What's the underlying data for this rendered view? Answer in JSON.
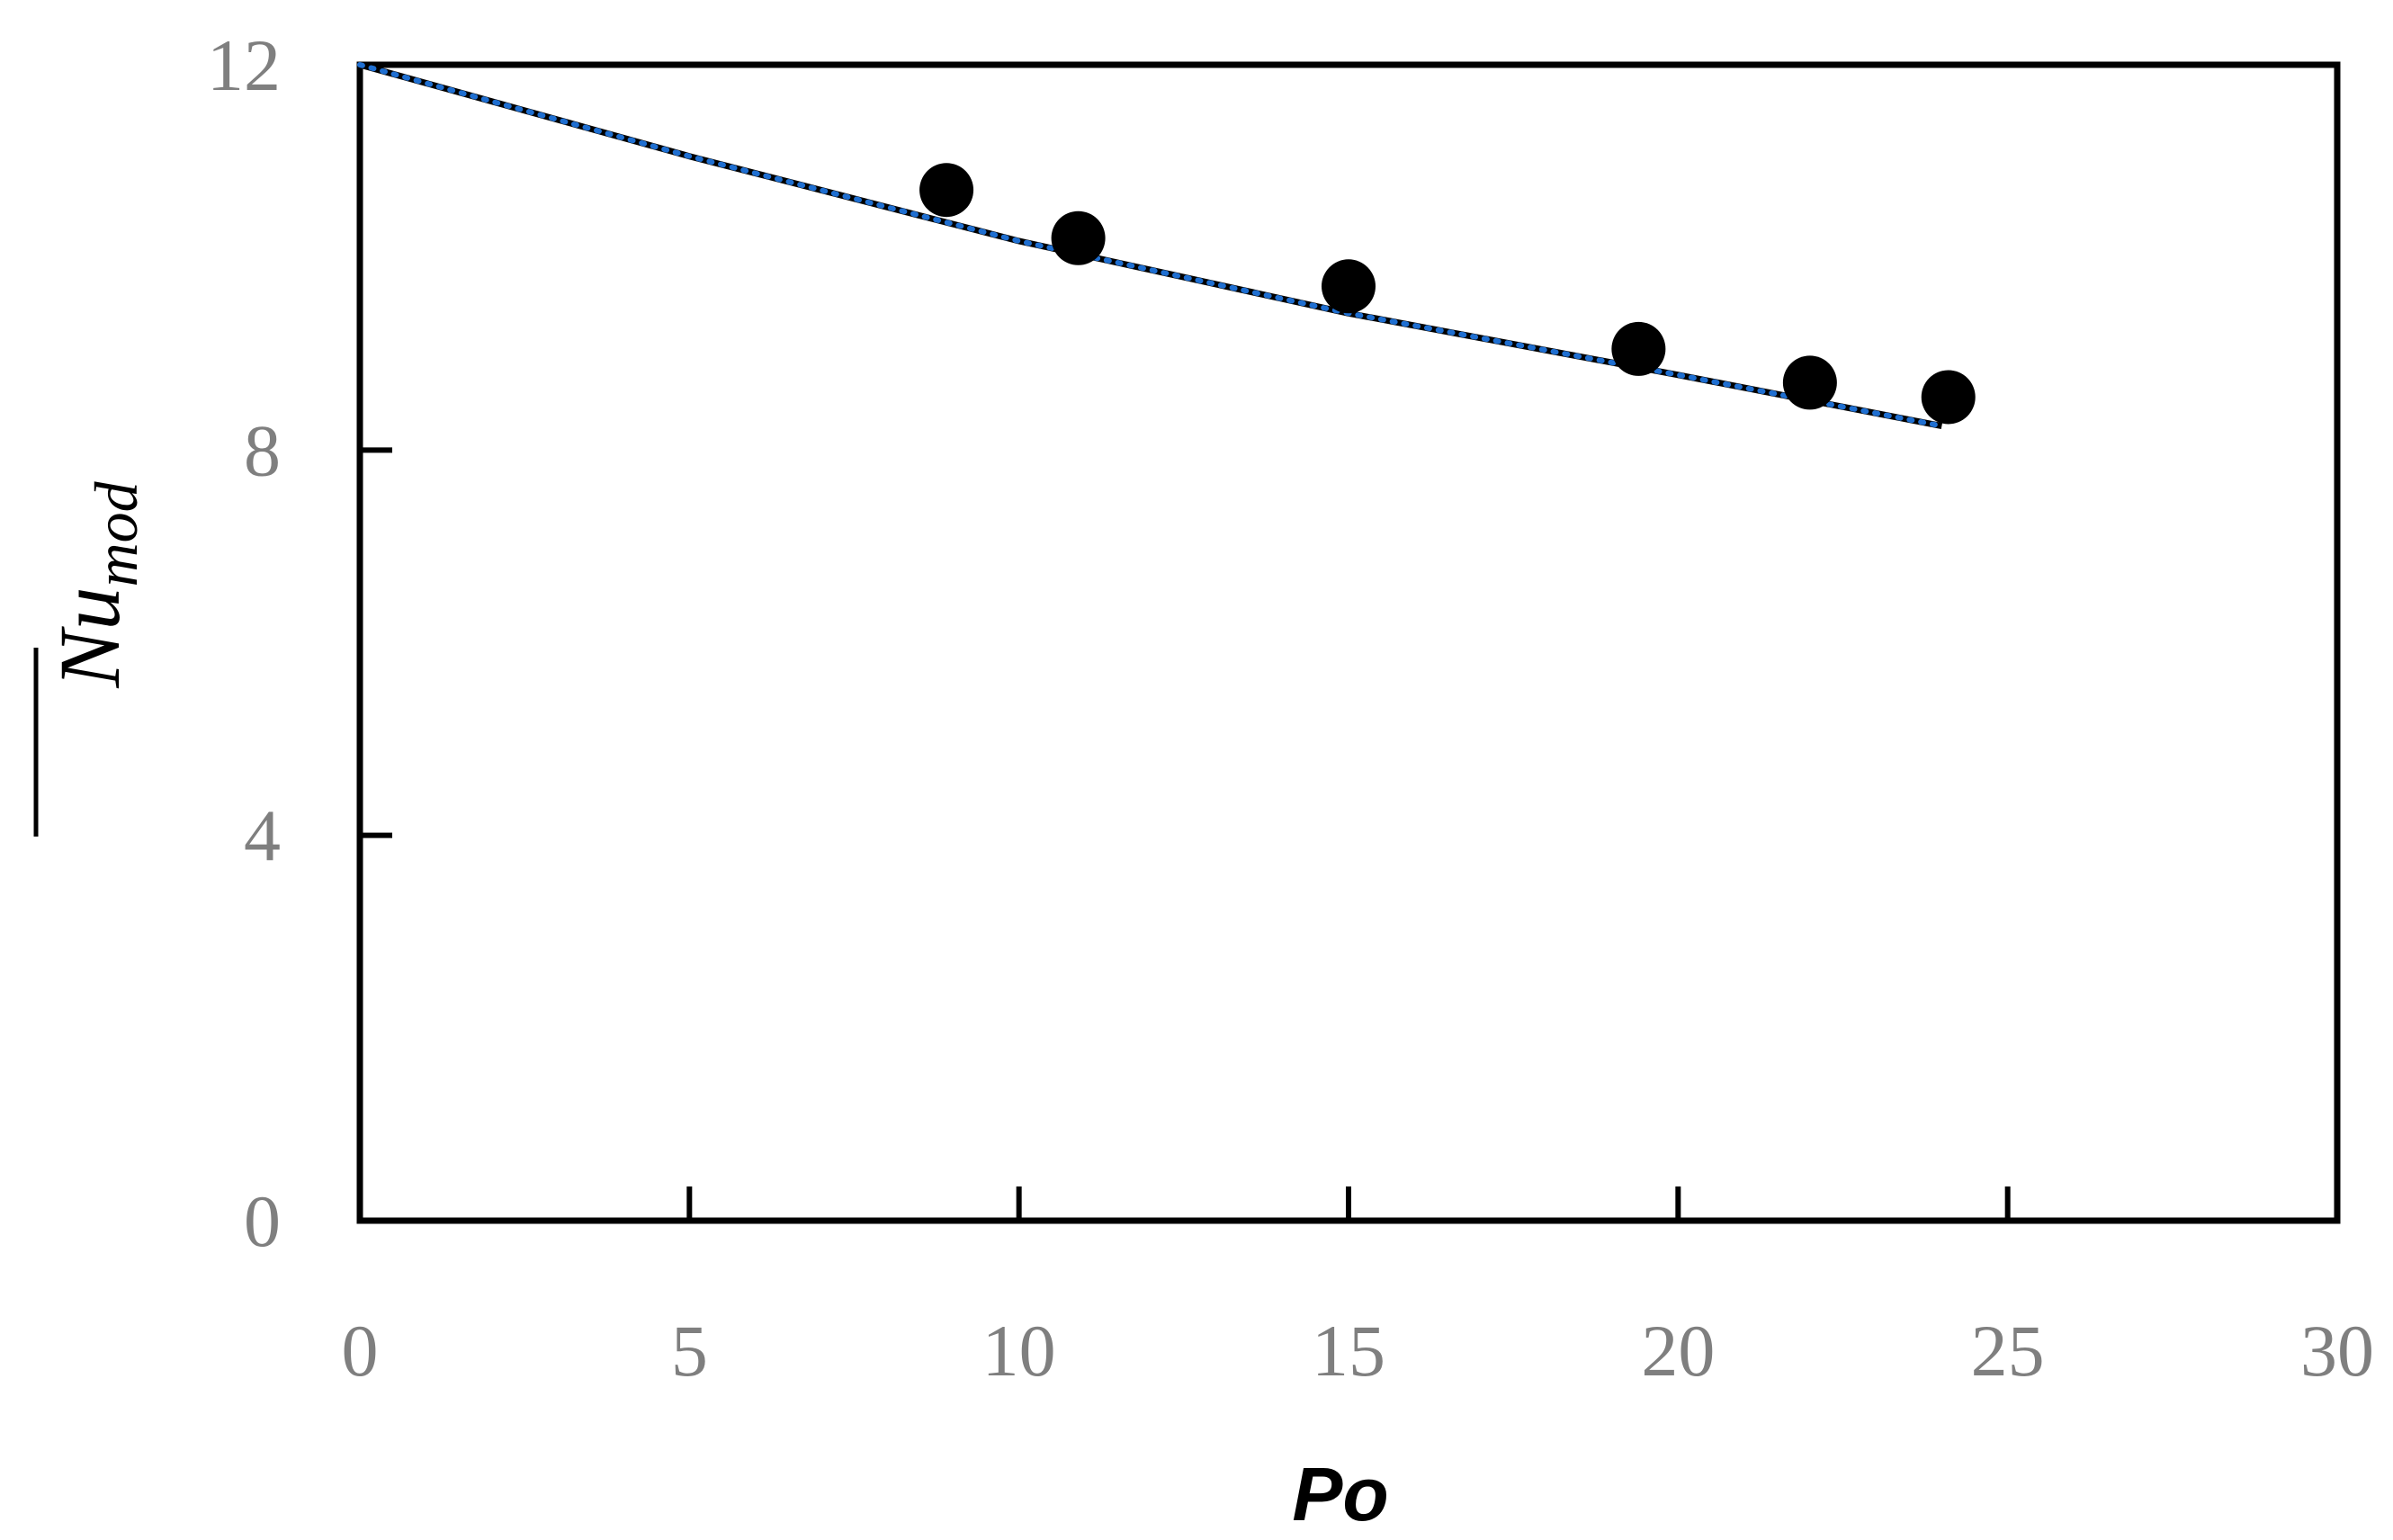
{
  "chart_data": {
    "type": "scatter",
    "title": "",
    "xlabel": "Po",
    "ylabel": {
      "base": "Nu",
      "subscript": "mod",
      "overline": true
    },
    "xlim": [
      0,
      30
    ],
    "ylim": [
      0,
      12
    ],
    "xticks": [
      0,
      5,
      10,
      15,
      20,
      25,
      30
    ],
    "yticks": [
      0,
      4,
      8,
      12
    ],
    "grid": false,
    "legend": "none",
    "series": [
      {
        "type": "scatter",
        "color": "#000000",
        "marker": "circle",
        "x": [
          8.9,
          10.9,
          15.0,
          19.4,
          22.0,
          24.1
        ],
        "y": [
          10.7,
          10.2,
          9.7,
          9.05,
          8.7,
          8.55
        ]
      },
      {
        "type": "line",
        "style": "solid",
        "color": "#000000",
        "x": [
          0,
          5,
          10,
          15,
          20,
          24
        ],
        "y": [
          12.0,
          11.05,
          10.17,
          9.42,
          8.78,
          8.25
        ]
      },
      {
        "type": "line",
        "style": "dotted",
        "color": "#1f6fd1",
        "x": [
          0,
          5,
          10,
          15,
          20,
          24
        ],
        "y": [
          12.0,
          11.05,
          10.17,
          9.42,
          8.78,
          8.25
        ]
      }
    ]
  }
}
